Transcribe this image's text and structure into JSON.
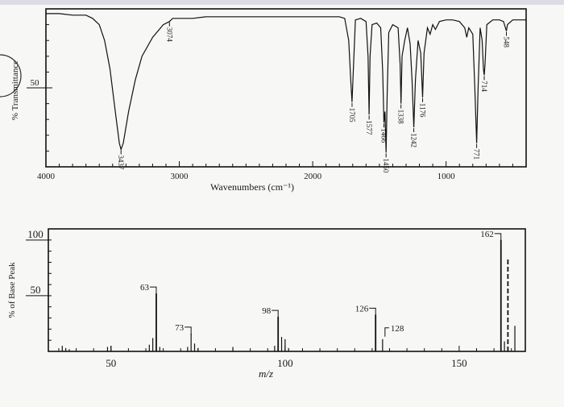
{
  "chart_data": [
    {
      "type": "line",
      "title": "",
      "xlabel": "Wavenumbers (cm⁻¹)",
      "ylabel": "% Transmittance",
      "xlim": [
        4000,
        400
      ],
      "ylim": [
        0,
        100
      ],
      "x_ticks": [
        4000,
        3000,
        2000,
        1000
      ],
      "y_ticks": [
        50
      ],
      "peaks": [
        {
          "x": 3437,
          "y": 11,
          "label": "3437"
        },
        {
          "x": 3074,
          "y": 92,
          "label": "3074"
        },
        {
          "x": 1705,
          "y": 41,
          "label": "1705"
        },
        {
          "x": 1577,
          "y": 33,
          "label": "1577"
        },
        {
          "x": 1466,
          "y": 28,
          "label": "1466"
        },
        {
          "x": 1450,
          "y": 9,
          "label": "1450"
        },
        {
          "x": 1338,
          "y": 40,
          "label": "1338"
        },
        {
          "x": 1242,
          "y": 25,
          "label": "1242"
        },
        {
          "x": 1176,
          "y": 44,
          "label": "1176"
        },
        {
          "x": 771,
          "y": 15,
          "label": "771"
        },
        {
          "x": 714,
          "y": 58,
          "label": "714"
        },
        {
          "x": 548,
          "y": 86,
          "label": "548"
        }
      ],
      "spectrum": [
        [
          4000,
          97
        ],
        [
          3900,
          97
        ],
        [
          3800,
          96
        ],
        [
          3700,
          96
        ],
        [
          3650,
          94
        ],
        [
          3600,
          90
        ],
        [
          3560,
          80
        ],
        [
          3520,
          62
        ],
        [
          3480,
          35
        ],
        [
          3450,
          15
        ],
        [
          3437,
          11
        ],
        [
          3420,
          15
        ],
        [
          3380,
          35
        ],
        [
          3330,
          55
        ],
        [
          3280,
          70
        ],
        [
          3200,
          82
        ],
        [
          3120,
          90
        ],
        [
          3074,
          92
        ],
        [
          3050,
          94
        ],
        [
          2900,
          94
        ],
        [
          2800,
          95
        ],
        [
          2500,
          95
        ],
        [
          2200,
          95
        ],
        [
          2000,
          95
        ],
        [
          1800,
          95
        ],
        [
          1760,
          94
        ],
        [
          1730,
          80
        ],
        [
          1715,
          55
        ],
        [
          1705,
          41
        ],
        [
          1695,
          62
        ],
        [
          1680,
          93
        ],
        [
          1640,
          94
        ],
        [
          1600,
          92
        ],
        [
          1585,
          70
        ],
        [
          1577,
          33
        ],
        [
          1570,
          70
        ],
        [
          1555,
          90
        ],
        [
          1520,
          91
        ],
        [
          1490,
          88
        ],
        [
          1475,
          60
        ],
        [
          1466,
          28
        ],
        [
          1458,
          35
        ],
        [
          1450,
          9
        ],
        [
          1442,
          45
        ],
        [
          1430,
          85
        ],
        [
          1400,
          90
        ],
        [
          1360,
          88
        ],
        [
          1345,
          65
        ],
        [
          1338,
          40
        ],
        [
          1330,
          70
        ],
        [
          1310,
          80
        ],
        [
          1290,
          88
        ],
        [
          1270,
          78
        ],
        [
          1255,
          55
        ],
        [
          1242,
          25
        ],
        [
          1230,
          55
        ],
        [
          1210,
          80
        ],
        [
          1190,
          72
        ],
        [
          1176,
          44
        ],
        [
          1165,
          72
        ],
        [
          1140,
          88
        ],
        [
          1120,
          84
        ],
        [
          1100,
          90
        ],
        [
          1080,
          87
        ],
        [
          1050,
          92
        ],
        [
          1000,
          93
        ],
        [
          950,
          93
        ],
        [
          900,
          92
        ],
        [
          860,
          88
        ],
        [
          845,
          82
        ],
        [
          830,
          88
        ],
        [
          800,
          84
        ],
        [
          785,
          50
        ],
        [
          771,
          15
        ],
        [
          760,
          50
        ],
        [
          745,
          88
        ],
        [
          730,
          80
        ],
        [
          720,
          62
        ],
        [
          714,
          58
        ],
        [
          708,
          65
        ],
        [
          695,
          90
        ],
        [
          650,
          93
        ],
        [
          600,
          93
        ],
        [
          570,
          92
        ],
        [
          555,
          88
        ],
        [
          548,
          86
        ],
        [
          540,
          90
        ],
        [
          500,
          93
        ],
        [
          450,
          93
        ],
        [
          400,
          93
        ]
      ]
    },
    {
      "type": "bar",
      "title": "",
      "xlabel": "m/z",
      "ylabel": "% of Base Peak",
      "xlim": [
        32,
        169
      ],
      "ylim": [
        0,
        110
      ],
      "x_ticks": [
        50,
        100,
        150
      ],
      "y_ticks": [
        50,
        100
      ],
      "labeled_peaks": [
        {
          "x": 63,
          "y": 52,
          "label": "63"
        },
        {
          "x": 73,
          "y": 16,
          "label": "73"
        },
        {
          "x": 98,
          "y": 31,
          "label": "98"
        },
        {
          "x": 126,
          "y": 33,
          "label": "126"
        },
        {
          "x": 128,
          "y": 11,
          "label": "128"
        },
        {
          "x": 162,
          "y": 100,
          "label": "162"
        }
      ],
      "peaks": [
        {
          "x": 36,
          "y": 5
        },
        {
          "x": 37,
          "y": 3
        },
        {
          "x": 38,
          "y": 2
        },
        {
          "x": 49,
          "y": 4
        },
        {
          "x": 50,
          "y": 5
        },
        {
          "x": 61,
          "y": 6
        },
        {
          "x": 62,
          "y": 12
        },
        {
          "x": 63,
          "y": 52
        },
        {
          "x": 64,
          "y": 4
        },
        {
          "x": 72,
          "y": 4
        },
        {
          "x": 73,
          "y": 16
        },
        {
          "x": 74,
          "y": 7
        },
        {
          "x": 75,
          "y": 3
        },
        {
          "x": 85,
          "y": 4
        },
        {
          "x": 97,
          "y": 5
        },
        {
          "x": 98,
          "y": 31
        },
        {
          "x": 99,
          "y": 13
        },
        {
          "x": 100,
          "y": 11
        },
        {
          "x": 101,
          "y": 3
        },
        {
          "x": 126,
          "y": 33
        },
        {
          "x": 128,
          "y": 11
        },
        {
          "x": 162,
          "y": 100
        },
        {
          "x": 163,
          "y": 9
        },
        {
          "x": 164,
          "y": 84
        },
        {
          "x": 166,
          "y": 23
        }
      ]
    }
  ]
}
